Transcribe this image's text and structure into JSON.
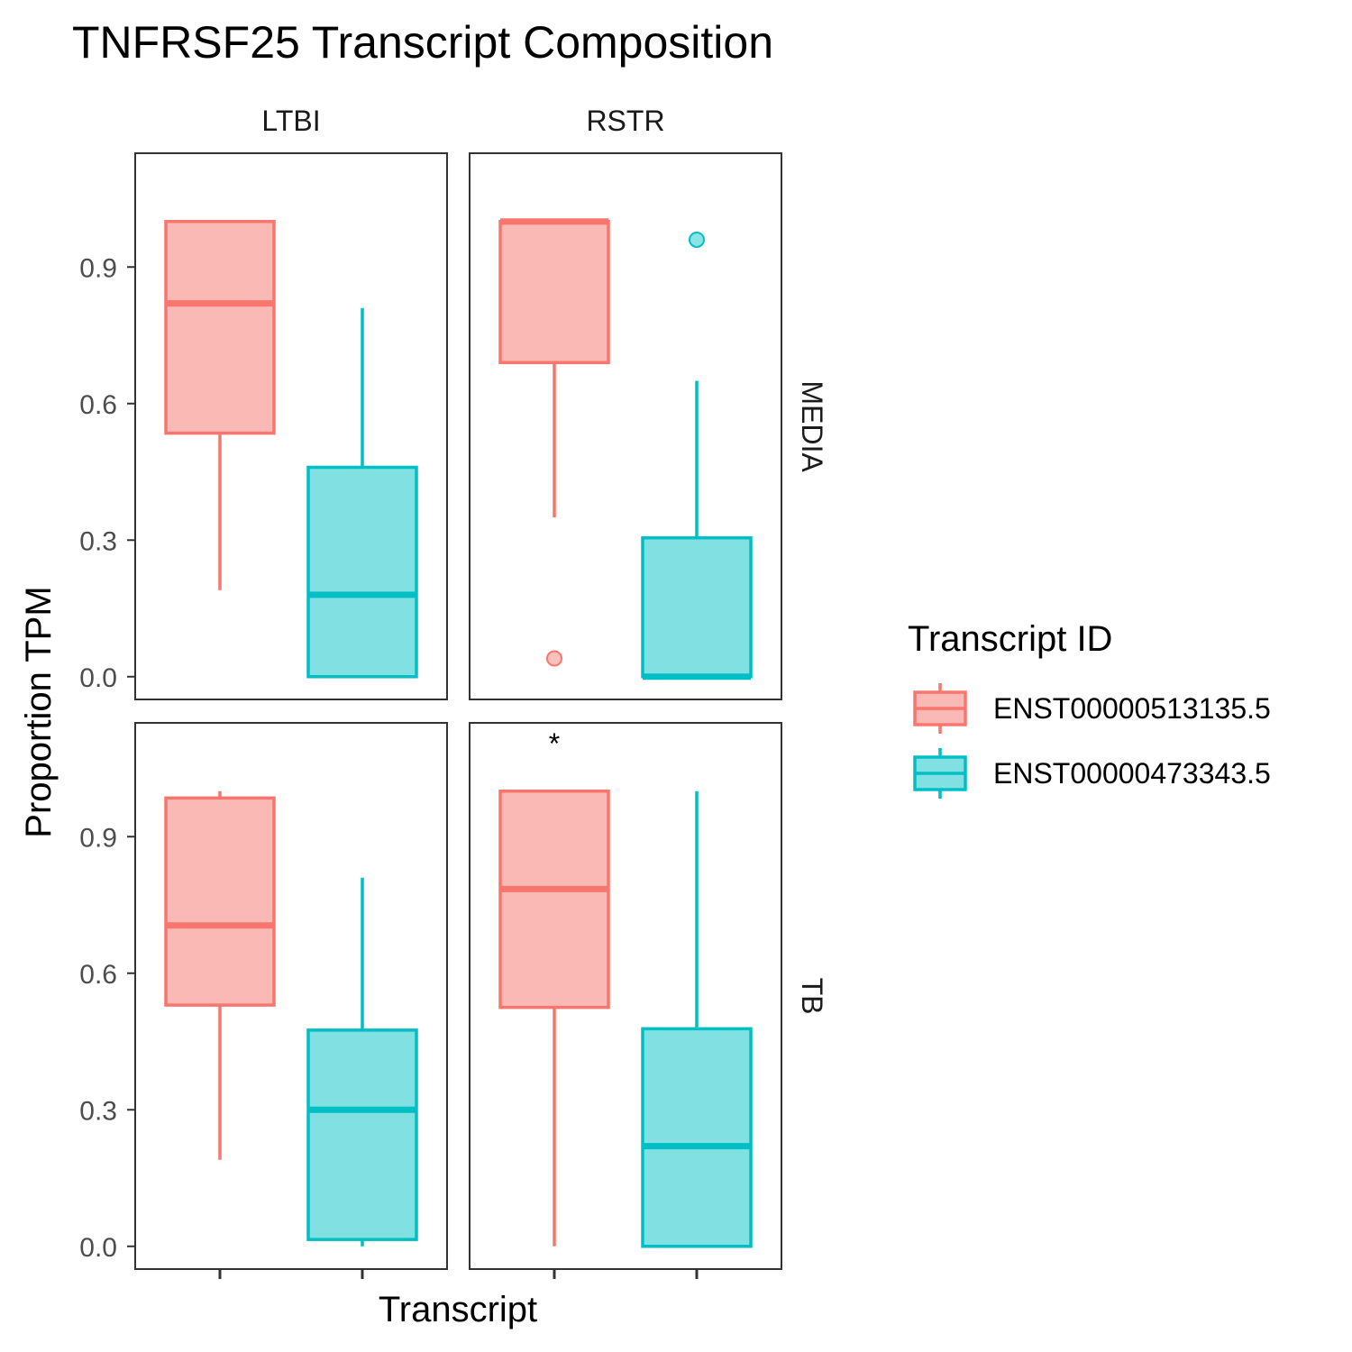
{
  "chart_data": {
    "type": "box",
    "title": "TNFRSF25 Transcript Composition",
    "xlabel": "Transcript",
    "ylabel": "Proportion TPM",
    "ylim": [
      -0.05,
      1.15
    ],
    "yticks": [
      0.0,
      0.3,
      0.6,
      0.9
    ],
    "ytick_labels": [
      "0.0",
      "0.3",
      "0.6",
      "0.9"
    ],
    "grid": false,
    "col_facets": [
      "LTBI",
      "RSTR"
    ],
    "row_facets": [
      "MEDIA",
      "TB"
    ],
    "legend": {
      "title": "Transcript ID",
      "position": "right",
      "entries": [
        {
          "label": "ENST00000513135.5",
          "color": "#F8766D",
          "fill": "#FBB9B5"
        },
        {
          "label": "ENST00000473343.5",
          "color": "#00BFC4",
          "fill": "#80E0E2"
        }
      ]
    },
    "panels": [
      {
        "row": "MEDIA",
        "col": "LTBI",
        "annotation": "",
        "boxes": [
          {
            "series": "ENST00000513135.5",
            "whisker_low": 0.19,
            "q1": 0.535,
            "median": 0.82,
            "q3": 1.0,
            "whisker_high": 1.0,
            "outliers": []
          },
          {
            "series": "ENST00000473343.5",
            "whisker_low": 0.0,
            "q1": 0.0,
            "median": 0.18,
            "q3": 0.46,
            "whisker_high": 0.81,
            "outliers": []
          }
        ]
      },
      {
        "row": "MEDIA",
        "col": "RSTR",
        "annotation": "",
        "boxes": [
          {
            "series": "ENST00000513135.5",
            "whisker_low": 0.35,
            "q1": 0.69,
            "median": 1.0,
            "q3": 1.0,
            "whisker_high": 1.0,
            "outliers": [
              0.04
            ]
          },
          {
            "series": "ENST00000473343.5",
            "whisker_low": 0.0,
            "q1": 0.0,
            "median": 0.0,
            "q3": 0.305,
            "whisker_high": 0.65,
            "outliers": [
              0.96
            ]
          }
        ]
      },
      {
        "row": "TB",
        "col": "LTBI",
        "annotation": "",
        "boxes": [
          {
            "series": "ENST00000513135.5",
            "whisker_low": 0.19,
            "q1": 0.53,
            "median": 0.705,
            "q3": 0.985,
            "whisker_high": 1.0,
            "outliers": []
          },
          {
            "series": "ENST00000473343.5",
            "whisker_low": 0.0,
            "q1": 0.015,
            "median": 0.3,
            "q3": 0.475,
            "whisker_high": 0.81,
            "outliers": []
          }
        ]
      },
      {
        "row": "TB",
        "col": "RSTR",
        "annotation": "*",
        "boxes": [
          {
            "series": "ENST00000513135.5",
            "whisker_low": 0.0,
            "q1": 0.525,
            "median": 0.785,
            "q3": 1.0,
            "whisker_high": 1.0,
            "outliers": []
          },
          {
            "series": "ENST00000473343.5",
            "whisker_low": 0.0,
            "q1": 0.0,
            "median": 0.22,
            "q3": 0.478,
            "whisker_high": 1.0,
            "outliers": []
          }
        ]
      }
    ]
  }
}
